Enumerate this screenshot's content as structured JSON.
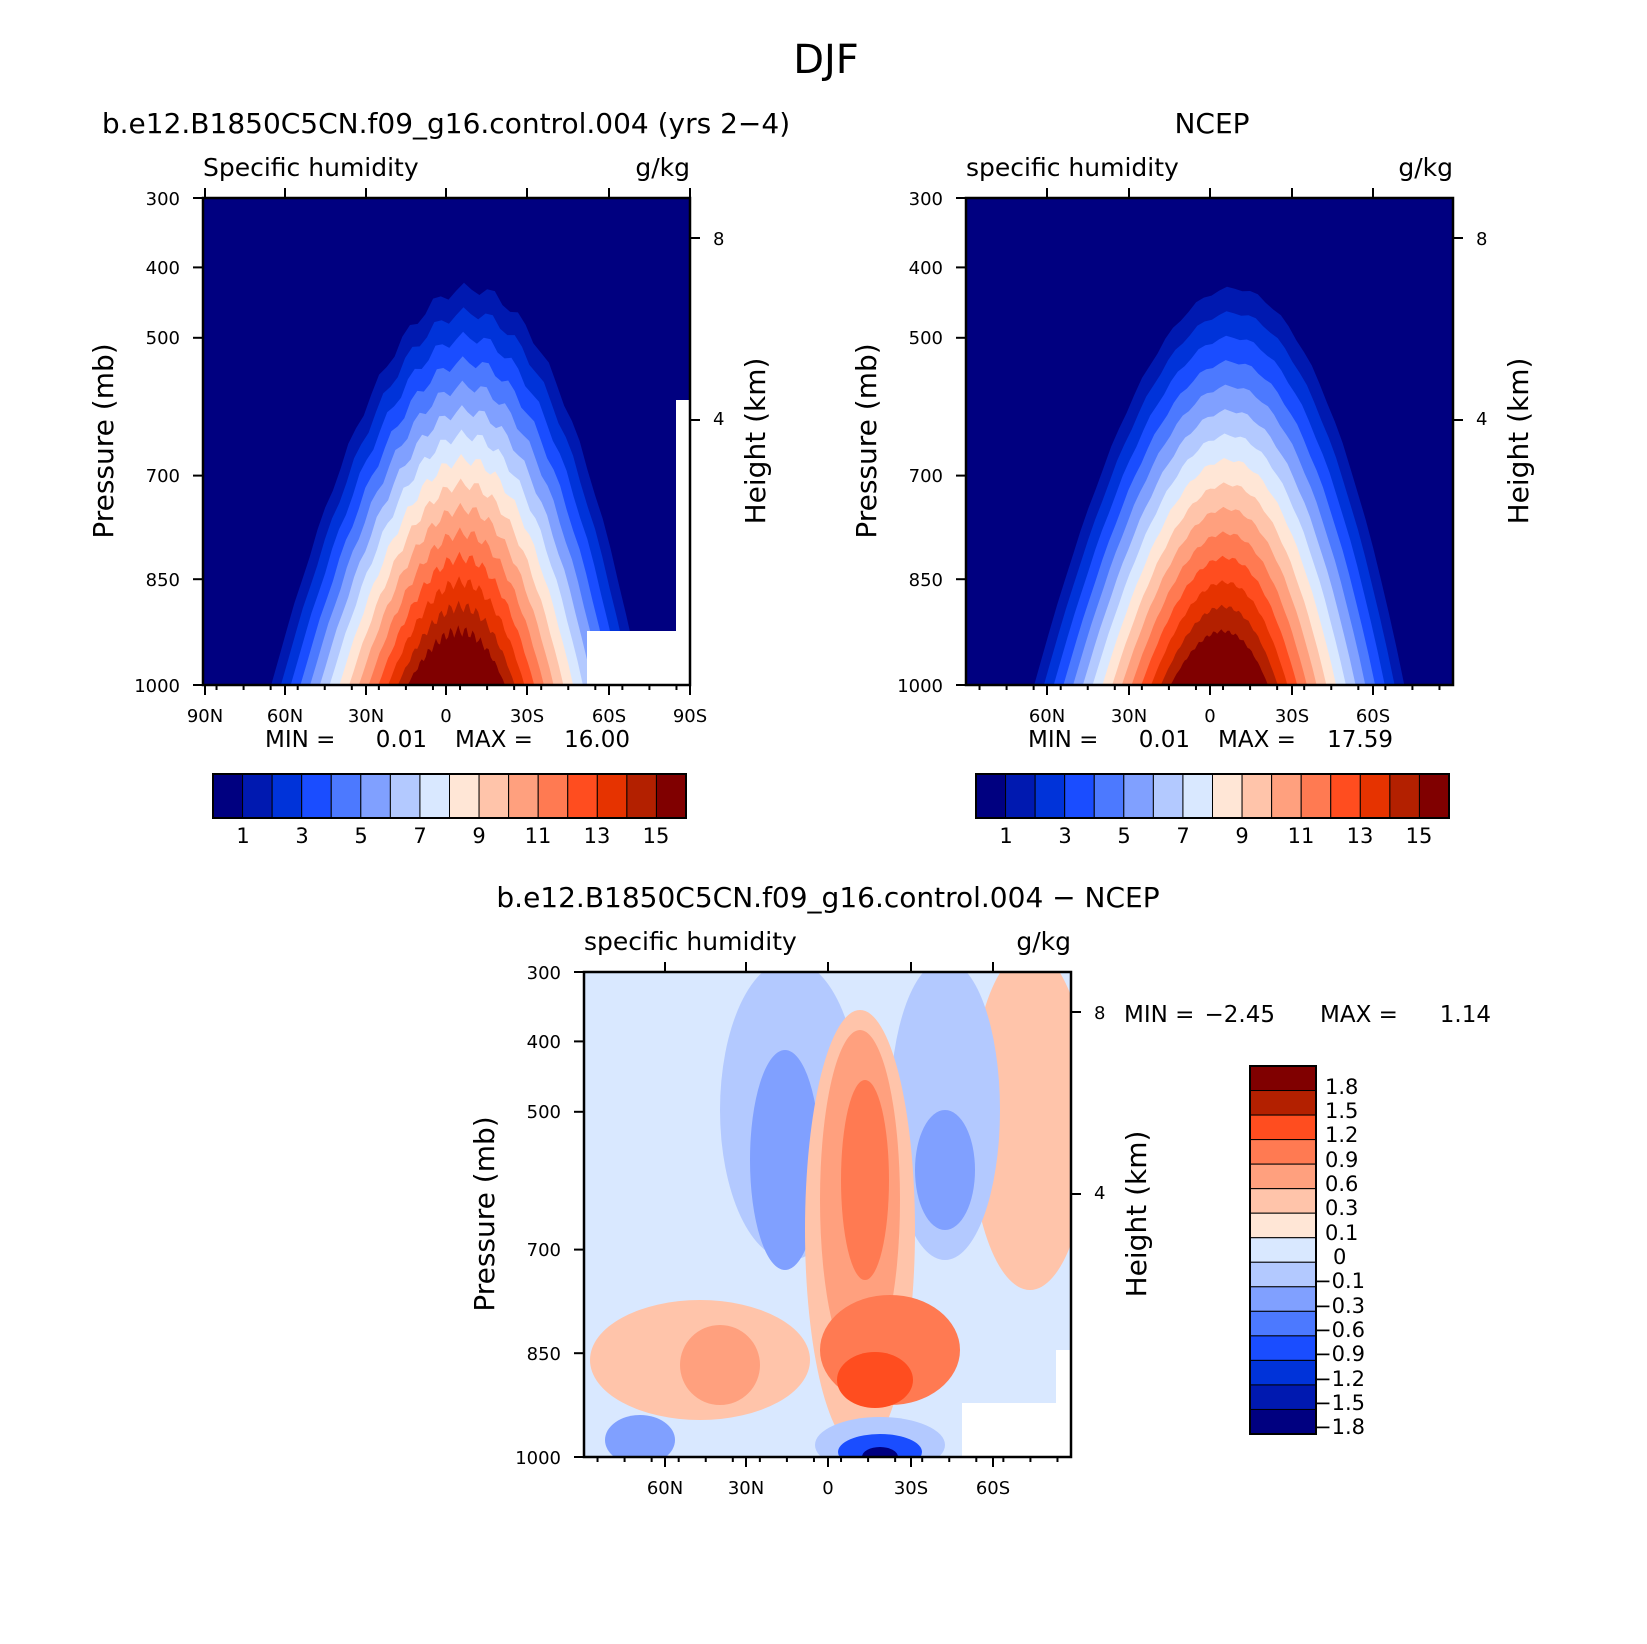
{
  "figure_title": "DJF",
  "colors": {
    "model_obs_levels": [
      "#000080",
      "#0019b0",
      "#0033d9",
      "#1a4dff",
      "#4c79ff",
      "#80a0ff",
      "#b3c9ff",
      "#d9e8ff",
      "#ffe6d6",
      "#ffc4aa",
      "#ffa07e",
      "#ff7a52",
      "#ff4d1f",
      "#e63300",
      "#b32000",
      "#800000"
    ],
    "difference_levels": [
      "#000080",
      "#0019b0",
      "#0033d9",
      "#1a4dff",
      "#4c79ff",
      "#80a0ff",
      "#b3c9ff",
      "#d9e8ff",
      "#ffe6d6",
      "#ffc4aa",
      "#ffa07e",
      "#ff7a52",
      "#ff4d1f",
      "#b32000",
      "#800000"
    ]
  },
  "chart_data": [
    {
      "type": "heatmap",
      "title": "b.e12.B1850C5CN.f09_g16.control.004 (yrs 2−4)",
      "left_string": "Specific humidity",
      "right_string": "g/kg",
      "xlabel": "",
      "ylabel": "Pressure (mb)",
      "right_axis_label": "Height (km)",
      "x_ticks": [
        "90N",
        "60N",
        "30N",
        "0",
        "30S",
        "60S",
        "90S"
      ],
      "y_ticks": [
        "300",
        "400",
        "500",
        "700",
        "850",
        "1000"
      ],
      "height_ticks": [
        "8",
        "4"
      ],
      "ylim": [
        1000,
        300
      ],
      "stats": {
        "min_label": "MIN =",
        "min_value": "0.01",
        "max_label": "MAX =",
        "max_value": "16.00"
      },
      "colorbar": {
        "labels": [
          "1",
          "3",
          "5",
          "7",
          "9",
          "11",
          "13",
          "15"
        ],
        "levels": [
          1,
          2,
          3,
          4,
          5,
          6,
          7,
          8,
          9,
          10,
          11,
          12,
          13,
          14,
          15
        ]
      },
      "peak_value": 16.0
    },
    {
      "type": "heatmap",
      "title": "NCEP",
      "left_string": "specific humidity",
      "right_string": "g/kg",
      "xlabel": "",
      "ylabel": "Pressure (mb)",
      "right_axis_label": "Height (km)",
      "x_ticks": [
        "60N",
        "30N",
        "0",
        "30S",
        "60S"
      ],
      "y_ticks": [
        "300",
        "400",
        "500",
        "700",
        "850",
        "1000"
      ],
      "height_ticks": [
        "8",
        "4"
      ],
      "ylim": [
        1000,
        300
      ],
      "stats": {
        "min_label": "MIN =",
        "min_value": "0.01",
        "max_label": "MAX =",
        "max_value": "17.59"
      },
      "colorbar": {
        "labels": [
          "1",
          "3",
          "5",
          "7",
          "9",
          "11",
          "13",
          "15"
        ],
        "levels": [
          1,
          2,
          3,
          4,
          5,
          6,
          7,
          8,
          9,
          10,
          11,
          12,
          13,
          14,
          15
        ]
      },
      "peak_value": 17.59
    },
    {
      "type": "heatmap",
      "title": "b.e12.B1850C5CN.f09_g16.control.004 − NCEP",
      "left_string": "specific humidity",
      "right_string": "g/kg",
      "xlabel": "",
      "ylabel": "Pressure (mb)",
      "right_axis_label": "Height (km)",
      "x_ticks": [
        "60N",
        "30N",
        "0",
        "30S",
        "60S"
      ],
      "y_ticks": [
        "300",
        "400",
        "500",
        "700",
        "850",
        "1000"
      ],
      "height_ticks": [
        "8",
        "4"
      ],
      "ylim": [
        1000,
        300
      ],
      "stats": {
        "min_label": "MIN =",
        "min_value": "−2.45",
        "max_label": "MAX =",
        "max_value": "1.14"
      },
      "colorbar": {
        "labels": [
          "1.8",
          "1.5",
          "1.2",
          "0.9",
          "0.6",
          "0.3",
          "0.1",
          "0",
          "−0.1",
          "−0.3",
          "−0.6",
          "−0.9",
          "−1.2",
          "−1.5",
          "−1.8"
        ],
        "levels": [
          1.8,
          1.5,
          1.2,
          0.9,
          0.6,
          0.3,
          0.1,
          0,
          -0.1,
          -0.3,
          -0.6,
          -0.9,
          -1.2,
          -1.5,
          -1.8
        ]
      }
    }
  ]
}
